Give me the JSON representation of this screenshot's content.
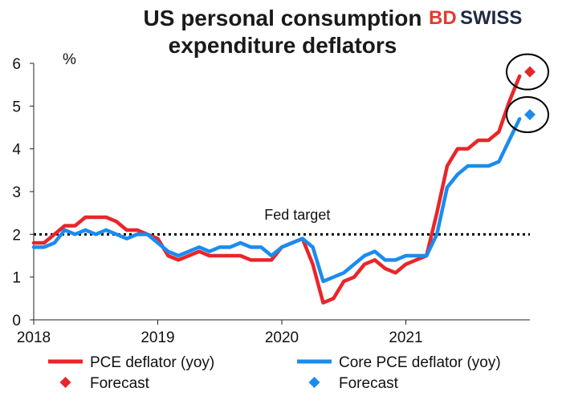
{
  "brand": {
    "part1": "BD",
    "part2": "SWISS",
    "color_bd": "#e03c31",
    "color_swiss": "#1f2a44"
  },
  "chart_data": {
    "type": "line",
    "title": [
      "US personal consumption",
      "expenditure deflators"
    ],
    "ylabel": "%",
    "xlabel": "",
    "ylim": [
      0,
      6
    ],
    "yticks": [
      0,
      1,
      2,
      3,
      4,
      5,
      6
    ],
    "xlim": [
      0,
      48
    ],
    "xticks": [
      {
        "label": "2018",
        "value": 0
      },
      {
        "label": "2019",
        "value": 12
      },
      {
        "label": "2020",
        "value": 24
      },
      {
        "label": "2021",
        "value": 36
      }
    ],
    "grid": false,
    "reference_line": {
      "label": "Fed target",
      "value": 2
    },
    "series": [
      {
        "name": "PCE deflator (yoy)",
        "color": "#e8262a",
        "values": [
          1.8,
          1.8,
          2.0,
          2.2,
          2.2,
          2.4,
          2.4,
          2.4,
          2.3,
          2.1,
          2.1,
          2.0,
          1.9,
          1.5,
          1.4,
          1.5,
          1.6,
          1.5,
          1.5,
          1.5,
          1.5,
          1.4,
          1.4,
          1.4,
          1.7,
          1.8,
          1.9,
          1.3,
          0.4,
          0.5,
          0.9,
          1.0,
          1.3,
          1.4,
          1.2,
          1.1,
          1.3,
          1.4,
          1.5,
          2.5,
          3.6,
          4.0,
          4.0,
          4.2,
          4.2,
          4.4,
          5.1,
          5.7
        ]
      },
      {
        "name": "Core PCE deflator (yoy)",
        "color": "#1a8cf0",
        "values": [
          1.7,
          1.7,
          1.8,
          2.1,
          2.0,
          2.1,
          2.0,
          2.1,
          2.0,
          1.9,
          2.0,
          2.0,
          1.8,
          1.6,
          1.5,
          1.6,
          1.7,
          1.6,
          1.7,
          1.7,
          1.8,
          1.7,
          1.7,
          1.5,
          1.7,
          1.8,
          1.9,
          1.7,
          0.9,
          1.0,
          1.1,
          1.3,
          1.5,
          1.6,
          1.4,
          1.4,
          1.5,
          1.5,
          1.5,
          2.0,
          3.1,
          3.4,
          3.6,
          3.6,
          3.6,
          3.7,
          4.2,
          4.7
        ]
      }
    ],
    "forecast_points": [
      {
        "name": "Forecast",
        "series": "PCE deflator (yoy)",
        "x": 48,
        "y": 5.8,
        "color": "#e8262a"
      },
      {
        "name": "Forecast",
        "series": "Core PCE deflator (yoy)",
        "x": 48,
        "y": 4.8,
        "color": "#1a8cf0"
      }
    ],
    "legend": [
      {
        "label": "PCE deflator (yoy)",
        "kind": "line",
        "color": "#e8262a"
      },
      {
        "label": "Core PCE deflator (yoy)",
        "kind": "line",
        "color": "#1a8cf0"
      },
      {
        "label": "Forecast",
        "kind": "marker",
        "color": "#e8262a"
      },
      {
        "label": "Forecast",
        "kind": "marker",
        "color": "#1a8cf0"
      }
    ],
    "legend_position": "bottom"
  }
}
